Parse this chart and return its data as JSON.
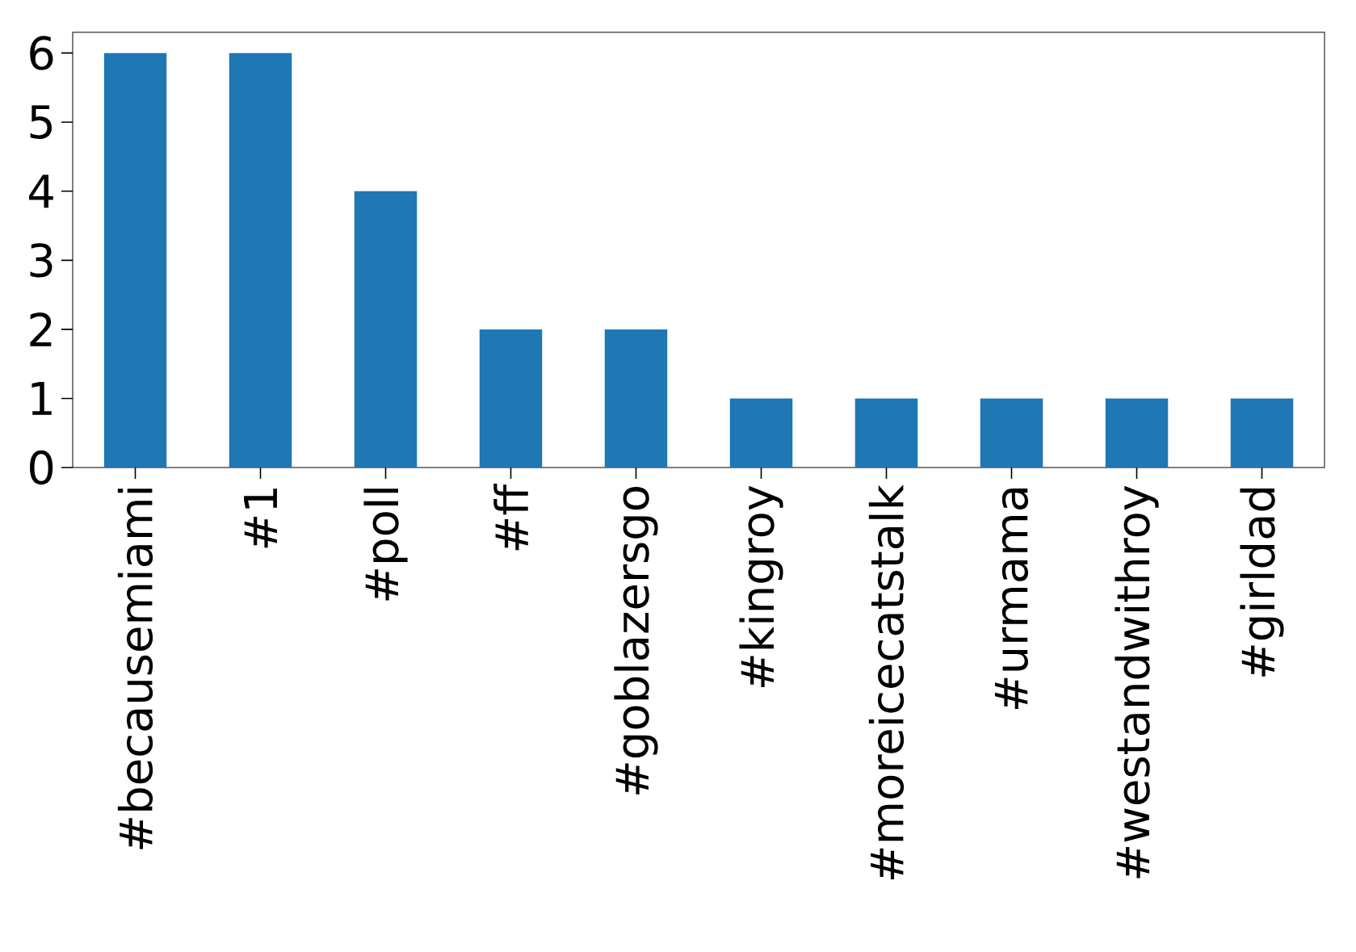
{
  "chart_data": {
    "type": "bar",
    "categories": [
      "#becausemiami",
      "#1",
      "#poll",
      "#ff",
      "#goblazersgo",
      "#kingroy",
      "#moreicecatstalk",
      "#urmama",
      "#westandwithroy",
      "#girldad"
    ],
    "values": [
      6,
      6,
      4,
      2,
      2,
      1,
      1,
      1,
      1,
      1
    ],
    "color": "#1f77b4",
    "ylim": [
      0,
      6.3
    ],
    "yticks": [
      0,
      1,
      2,
      3,
      4,
      5,
      6
    ]
  }
}
